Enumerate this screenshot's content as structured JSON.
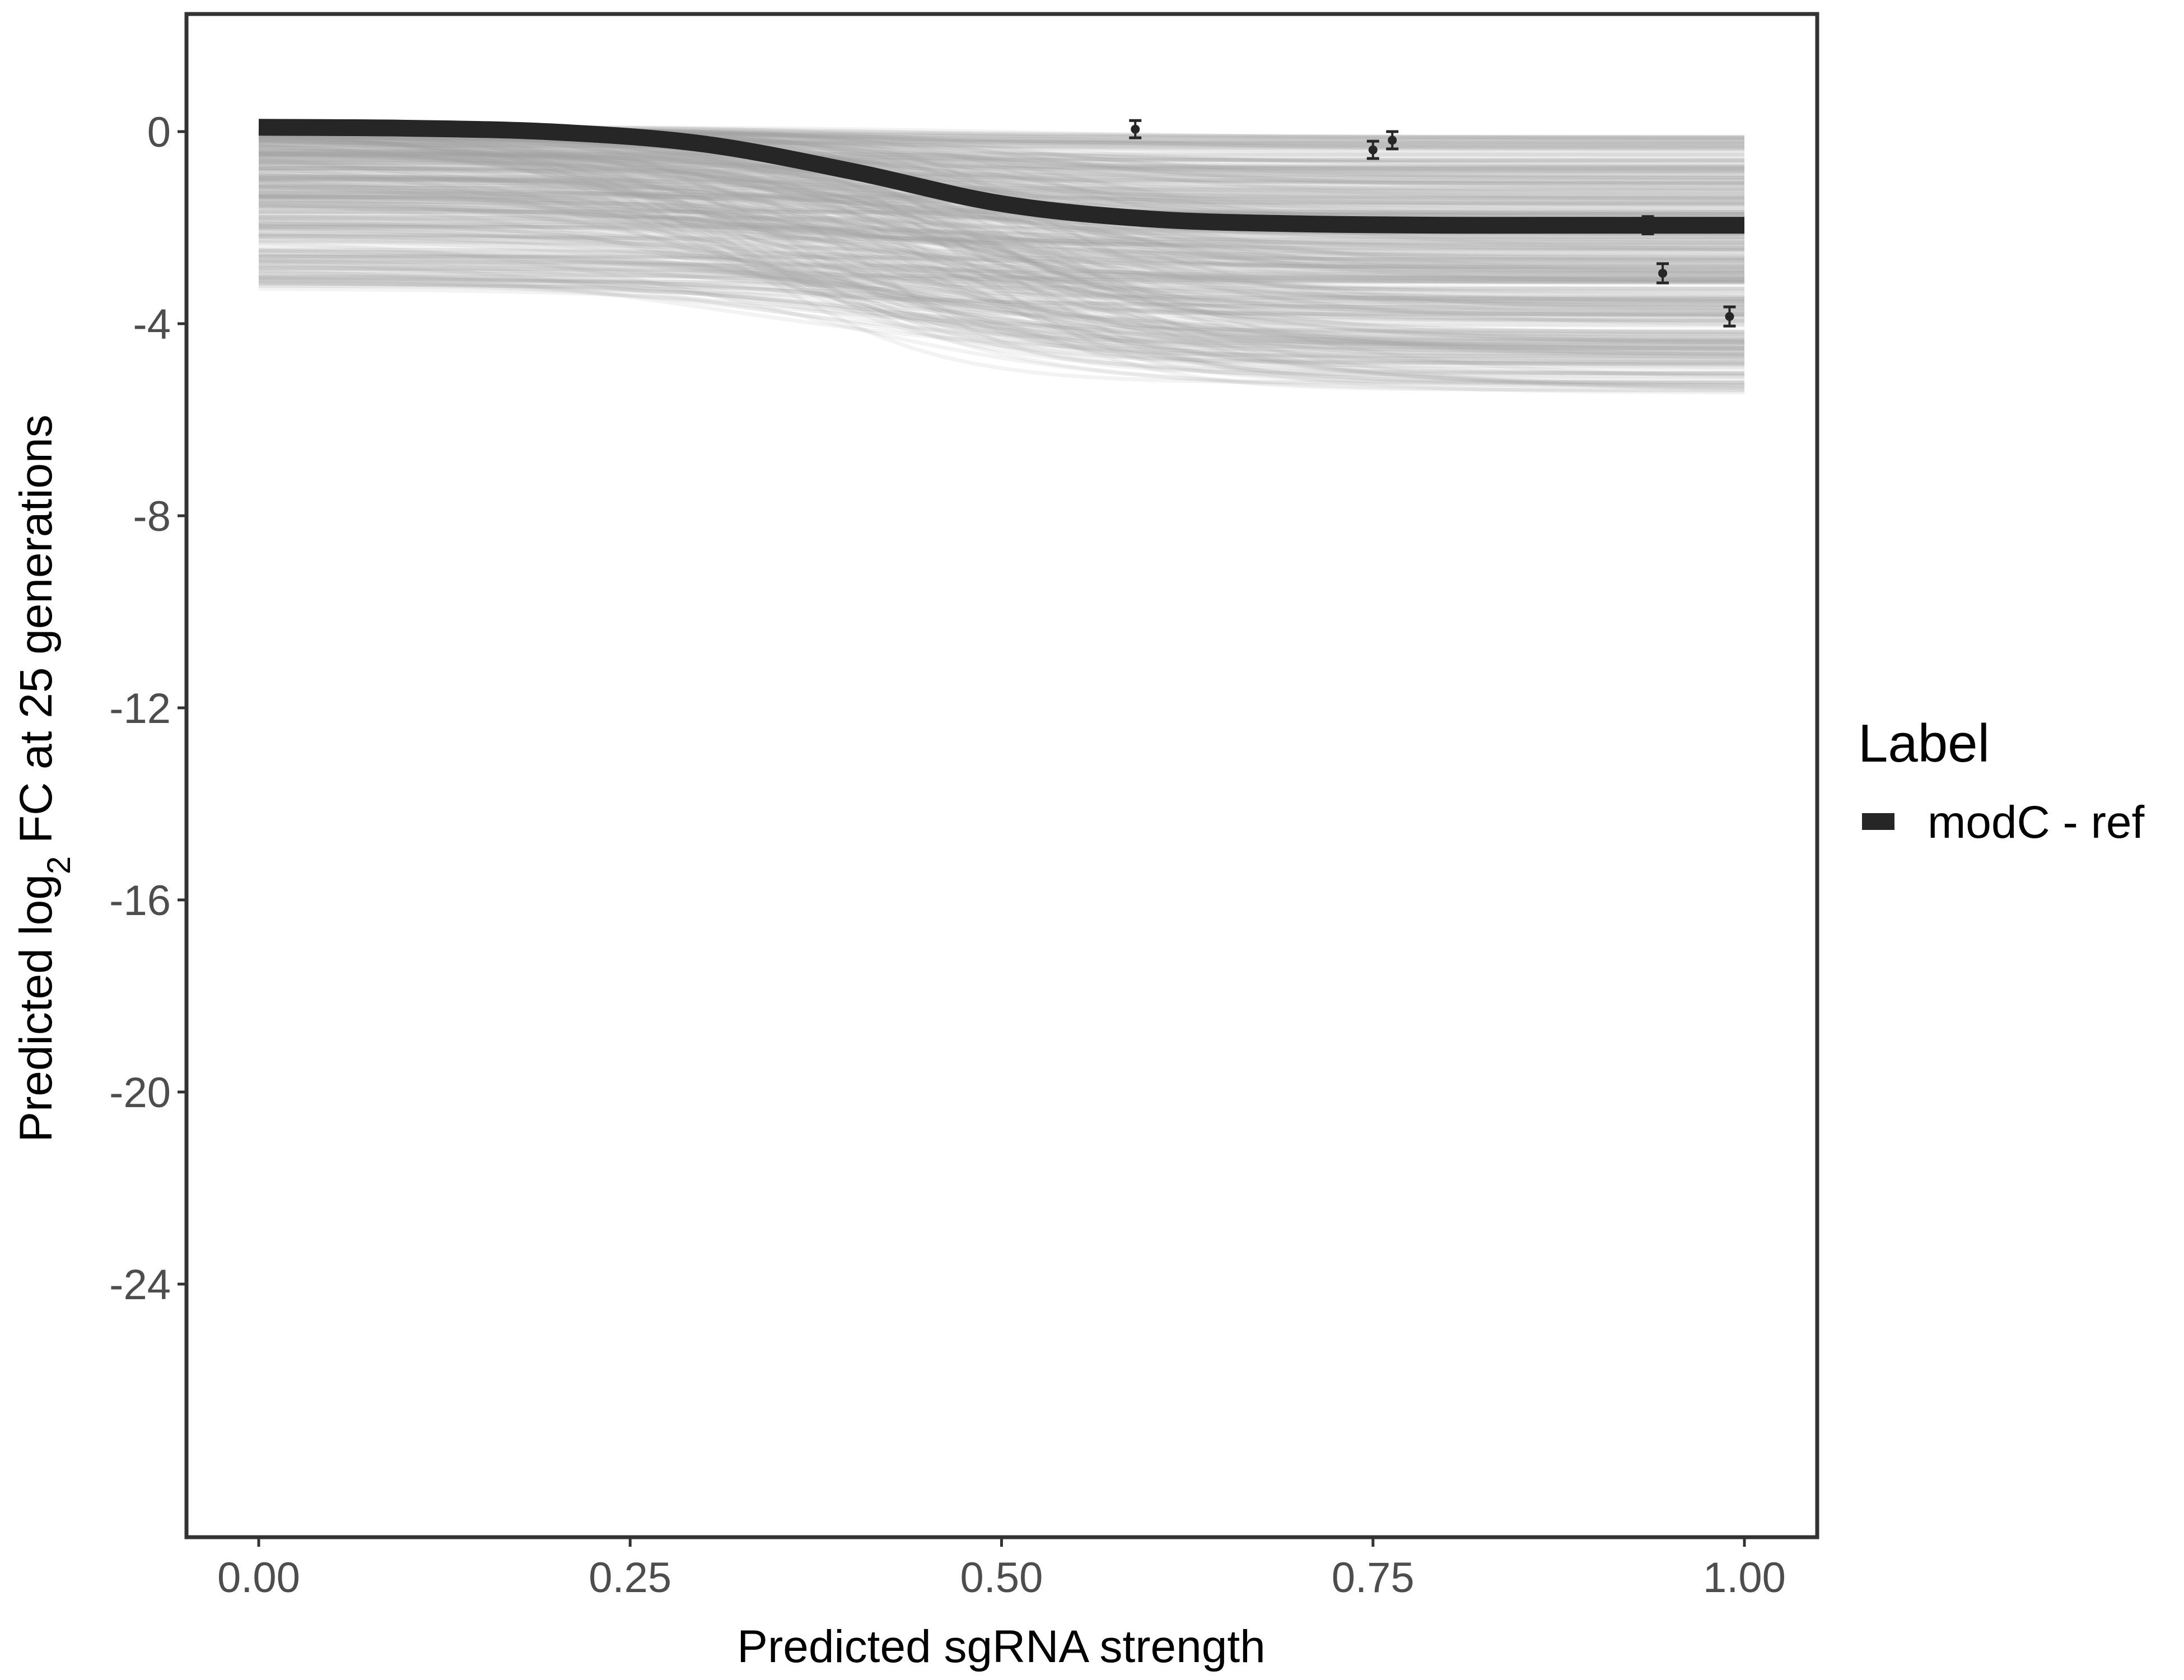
{
  "chart_data": {
    "type": "line",
    "xlabel": "Predicted sgRNA strength",
    "ylabel_prefix": "Predicted  log",
    "ylabel_sub": "2",
    "ylabel_suffix": " FC at 25 generations",
    "xlim": [
      -0.05,
      1.05
    ],
    "ylim": [
      -29.3,
      2.45
    ],
    "x_ticks": [
      0,
      0.25,
      0.5,
      0.75,
      1
    ],
    "x_tick_labels": [
      "0.00",
      "0.25",
      "0.50",
      "0.75",
      "1.00"
    ],
    "y_ticks": [
      0,
      -4,
      -8,
      -12,
      -16,
      -20,
      -24
    ],
    "y_tick_labels": [
      "0",
      "-4",
      "-8",
      "-12",
      "-16",
      "-20",
      "-24"
    ],
    "grid": false,
    "legend": {
      "title": "Label",
      "position": "right",
      "entries": [
        {
          "label": "modC - ref",
          "color": "#262626"
        }
      ]
    },
    "series": [
      {
        "name": "modC - ref",
        "color": "#262626",
        "x": [
          0,
          0.1,
          0.2,
          0.3,
          0.4,
          0.5,
          0.6,
          0.7,
          0.8,
          0.9,
          1.0
        ],
        "y": [
          0.09,
          0.07,
          -0.01,
          -0.26,
          -0.83,
          -1.5,
          -1.82,
          -1.92,
          -1.95,
          -1.95,
          -1.95
        ]
      }
    ],
    "posterior_draws": {
      "color": "#a6a6a6",
      "start_range": [
        -3.3,
        0.1
      ],
      "end_range": [
        -5.5,
        -0.1
      ]
    },
    "observed_points": {
      "color": "#262626",
      "x": [
        0.59,
        0.75,
        0.763,
        0.935,
        0.945,
        0.99
      ],
      "y": [
        0.05,
        -0.38,
        -0.18,
        -1.95,
        -2.95,
        -3.85
      ],
      "error": [
        0.18,
        0.18,
        0.18,
        0.18,
        0.2,
        0.2
      ]
    }
  }
}
